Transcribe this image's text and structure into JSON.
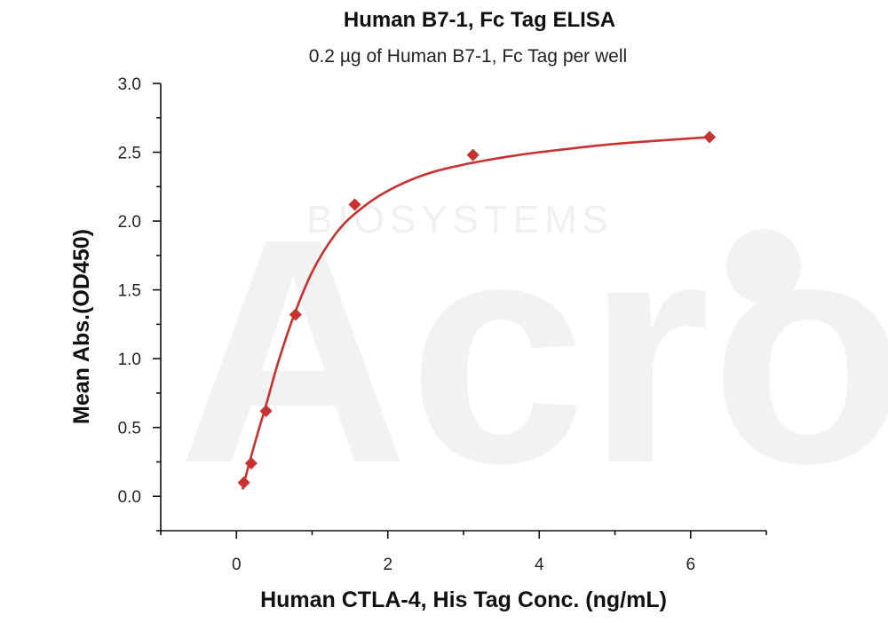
{
  "chart_data": {
    "type": "scatter",
    "title": "Human B7-1, Fc Tag ELISA",
    "subtitle": "0.2 µg of Human B7-1, Fc Tag per well",
    "xlabel": "Human CTLA-4, His Tag Conc. (ng/mL)",
    "ylabel": "Mean Abs.(OD450)",
    "xlim": [
      -1,
      7
    ],
    "ylim": [
      -0.25,
      3.0
    ],
    "xticks": [
      0,
      2,
      4,
      6
    ],
    "xtick_labels": [
      "0",
      "2",
      "4",
      "6"
    ],
    "yticks": [
      0.0,
      0.5,
      1.0,
      1.5,
      2.0,
      2.5,
      3.0
    ],
    "ytick_labels": [
      "0.0",
      "0.5",
      "1.0",
      "1.5",
      "2.0",
      "2.5",
      "3.0"
    ],
    "grid": false,
    "legend": "none",
    "series": [
      {
        "marker": "diamond",
        "color": "#c8312f",
        "x": [
          0.098,
          0.195,
          0.391,
          0.781,
          1.563,
          3.125,
          6.25
        ],
        "y": [
          0.1,
          0.24,
          0.62,
          1.32,
          2.12,
          2.48,
          2.61
        ]
      }
    ],
    "fit_curve": {
      "color": "#c8312f",
      "x": [
        0.08,
        0.15,
        0.25,
        0.4,
        0.55,
        0.75,
        1.0,
        1.3,
        1.6,
        2.0,
        2.5,
        3.0,
        3.5,
        4.0,
        5.0,
        6.25
      ],
      "y": [
        0.05,
        0.2,
        0.4,
        0.68,
        0.97,
        1.3,
        1.63,
        1.9,
        2.07,
        2.22,
        2.34,
        2.41,
        2.46,
        2.5,
        2.56,
        2.61
      ]
    },
    "watermark": {
      "text": "Acro",
      "subtext": "BIOSYSTEMS",
      "color": "#f2f2f2"
    }
  }
}
